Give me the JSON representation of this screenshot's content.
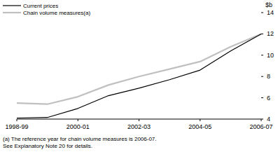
{
  "chart_data": {
    "type": "line",
    "categories": [
      "1998-99",
      null,
      "2000-01",
      null,
      "2002-03",
      null,
      "2004-05",
      null,
      "2006-07"
    ],
    "series": [
      {
        "name": "Current prices",
        "color": "#000000",
        "values": [
          4.1,
          4.15,
          5.0,
          6.2,
          6.9,
          7.7,
          8.6,
          10.4,
          12.0
        ]
      },
      {
        "name": "Chain volume measures(a)",
        "color": "#c0c0c0",
        "values": [
          5.5,
          5.4,
          6.1,
          7.2,
          8.0,
          8.7,
          9.4,
          10.8,
          12.0
        ]
      }
    ],
    "y_label": "$b",
    "ylim": [
      4,
      14
    ],
    "yticks": [
      4,
      6,
      8,
      10,
      12,
      14
    ],
    "legend": "upper left",
    "grid": false,
    "annotations": [
      "(a) The reference year for chain volume measures is 2006-07.",
      "See Explanatory Note 20 for details."
    ]
  }
}
